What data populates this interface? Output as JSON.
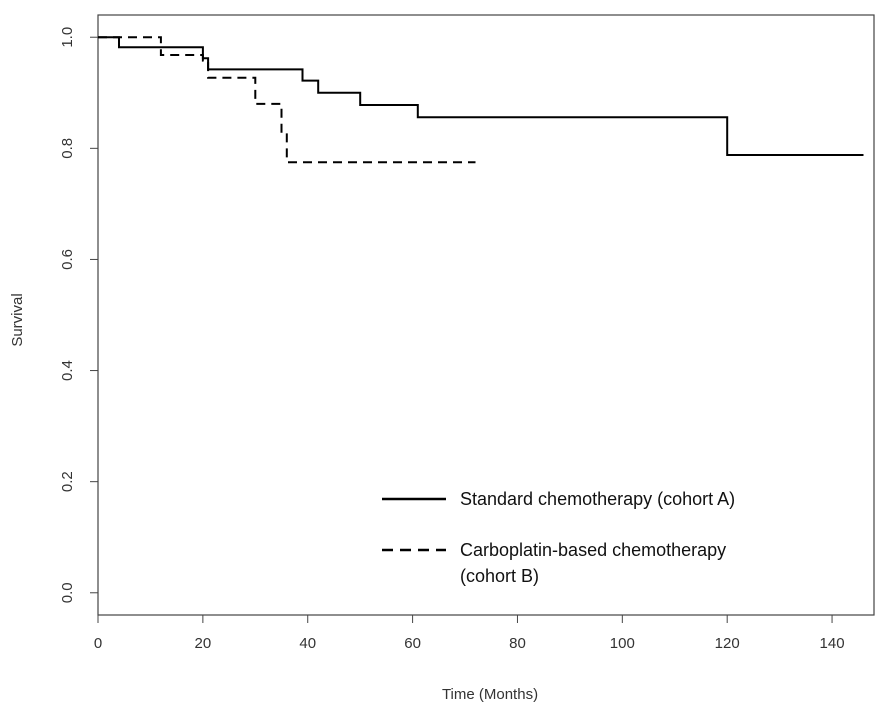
{
  "chart_data": {
    "type": "line",
    "subtype": "kaplan-meier-step",
    "title": "",
    "xlabel": "Time (Months)",
    "ylabel": "Survival",
    "xlim": [
      0,
      148
    ],
    "ylim": [
      -0.04,
      1.04
    ],
    "x_ticks": [
      0,
      20,
      40,
      60,
      80,
      100,
      120,
      140
    ],
    "y_ticks": [
      0.0,
      0.2,
      0.4,
      0.6,
      0.8,
      1.0
    ],
    "y_tick_labels": [
      "0.0",
      "0.2",
      "0.4",
      "0.6",
      "0.8",
      "1.0"
    ],
    "grid": false,
    "legend_position": "bottom-right",
    "series": [
      {
        "name": "Standard chemotherapy (cohort A)",
        "line_style": "solid",
        "color": "#000000",
        "x": [
          0,
          4,
          20,
          21,
          39,
          42,
          50,
          61,
          120,
          146
        ],
        "y": [
          1.0,
          0.982,
          0.962,
          0.942,
          0.922,
          0.9,
          0.878,
          0.856,
          0.788,
          0.788
        ]
      },
      {
        "name": "Carboplatin-based chemotherapy",
        "name_line2": "(cohort B)",
        "line_style": "dashed",
        "color": "#000000",
        "x": [
          0,
          12,
          20,
          21,
          30,
          35,
          36,
          72
        ],
        "y": [
          1.0,
          0.968,
          0.958,
          0.927,
          0.88,
          0.83,
          0.775,
          0.775
        ]
      }
    ]
  }
}
